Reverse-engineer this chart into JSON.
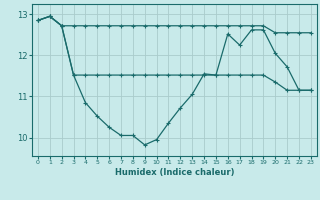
{
  "xlabel": "Humidex (Indice chaleur)",
  "bg_color": "#c8eaea",
  "grid_color": "#b8d8d8",
  "line_color": "#1a6b6b",
  "xlim": [
    -0.5,
    23.5
  ],
  "ylim": [
    9.55,
    13.25
  ],
  "yticks": [
    10,
    11,
    12,
    13
  ],
  "xticks": [
    0,
    1,
    2,
    3,
    4,
    5,
    6,
    7,
    8,
    9,
    10,
    11,
    12,
    13,
    14,
    15,
    16,
    17,
    18,
    19,
    20,
    21,
    22,
    23
  ],
  "series1_x": [
    0,
    1,
    2,
    3,
    4,
    5,
    6,
    7,
    8,
    9,
    10,
    11,
    12,
    13,
    14,
    15,
    16,
    17,
    18,
    19,
    20,
    21,
    22,
    23
  ],
  "series1_y": [
    12.85,
    12.95,
    12.72,
    12.72,
    12.72,
    12.72,
    12.72,
    12.72,
    12.72,
    12.72,
    12.72,
    12.72,
    12.72,
    12.72,
    12.72,
    12.72,
    12.72,
    12.72,
    12.72,
    12.72,
    12.55,
    12.55,
    12.55,
    12.55
  ],
  "series2_x": [
    0,
    1,
    2,
    3,
    4,
    5,
    6,
    7,
    8,
    9,
    10,
    11,
    12,
    13,
    14,
    15,
    16,
    17,
    18,
    19,
    20,
    21,
    22,
    23
  ],
  "series2_y": [
    12.85,
    12.95,
    12.72,
    11.52,
    11.52,
    11.52,
    11.52,
    11.52,
    11.52,
    11.52,
    11.52,
    11.52,
    11.52,
    11.52,
    11.52,
    11.52,
    11.52,
    11.52,
    11.52,
    11.52,
    11.35,
    11.15,
    11.15,
    11.15
  ],
  "series3_x": [
    0,
    1,
    2,
    3,
    4,
    5,
    6,
    7,
    8,
    9,
    10,
    11,
    12,
    13,
    14,
    15,
    16,
    17,
    18,
    19,
    20,
    21,
    22,
    23
  ],
  "series3_y": [
    12.85,
    12.95,
    12.72,
    11.52,
    10.85,
    10.52,
    10.25,
    10.05,
    10.05,
    9.82,
    9.95,
    10.35,
    10.72,
    11.05,
    11.55,
    11.52,
    12.52,
    12.25,
    12.62,
    12.62,
    12.05,
    11.72,
    11.15,
    11.15
  ]
}
